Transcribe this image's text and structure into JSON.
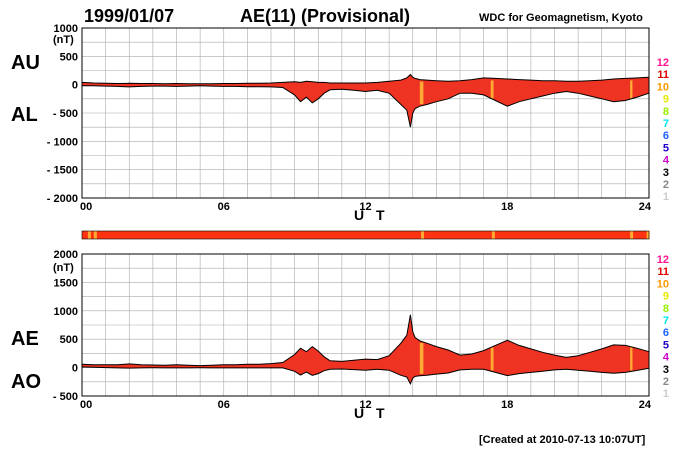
{
  "header": {
    "date": "1999/01/07",
    "title": "AE(11) (Provisional)",
    "org": "WDC for Geomagnetism, Kyoto"
  },
  "footer": {
    "created": "[Created at 2010-07-13 10:07UT]"
  },
  "legend": {
    "items": [
      {
        "label": "12",
        "color": "#ff1493"
      },
      {
        "label": "11",
        "color": "#e00000"
      },
      {
        "label": "10",
        "color": "#ff9900"
      },
      {
        "label": "9",
        "color": "#e8e800"
      },
      {
        "label": "8",
        "color": "#99ee00"
      },
      {
        "label": "7",
        "color": "#00e5ee"
      },
      {
        "label": "6",
        "color": "#1e64ff"
      },
      {
        "label": "5",
        "color": "#2200cc"
      },
      {
        "label": "4",
        "color": "#cc00cc"
      },
      {
        "label": "3",
        "color": "#000000"
      },
      {
        "label": "2",
        "color": "#888888"
      },
      {
        "label": "1",
        "color": "#cccccc"
      }
    ]
  },
  "colors": {
    "fill": "#ee3322",
    "band": "#ff3311",
    "highlight": "#ffaa33",
    "grid": "#aaaaaa"
  },
  "chart_data": [
    {
      "type": "area",
      "title": "",
      "unit": "(nT)",
      "xlabel": "U T",
      "xlim": [
        0,
        24
      ],
      "xticks": [
        {
          "v": 0,
          "label": "00"
        },
        {
          "v": 6,
          "label": "06"
        },
        {
          "v": 12,
          "label": "12"
        },
        {
          "v": 18,
          "label": "18"
        },
        {
          "v": 24,
          "label": "24"
        }
      ],
      "ylim": [
        -2000,
        1000
      ],
      "yticks": [
        {
          "v": 1000,
          "label": "1000"
        },
        {
          "v": 500,
          "label": "500"
        },
        {
          "v": 0,
          "label": "0"
        },
        {
          "v": -500,
          "label": "- 500"
        },
        {
          "v": -1000,
          "label": "- 1000"
        },
        {
          "v": -1500,
          "label": "- 1500"
        },
        {
          "v": -2000,
          "label": "- 2000"
        }
      ],
      "upper_name": "AU",
      "lower_name": "AL",
      "x": [
        0,
        0.5,
        1,
        1.5,
        2,
        2.5,
        3,
        3.5,
        4,
        4.5,
        5,
        5.5,
        6,
        6.5,
        7,
        7.5,
        8,
        8.5,
        9,
        9.25,
        9.5,
        9.75,
        10,
        10.25,
        10.5,
        11,
        11.5,
        12,
        12.5,
        13,
        13.5,
        13.75,
        13.9,
        14,
        14.1,
        14.3,
        14.6,
        15,
        15.5,
        16,
        16.5,
        17,
        17.5,
        18,
        18.5,
        19,
        19.5,
        20,
        20.5,
        21,
        21.5,
        22,
        22.5,
        23,
        23.5,
        24
      ],
      "upper": [
        40,
        30,
        25,
        20,
        25,
        20,
        20,
        15,
        20,
        15,
        15,
        15,
        20,
        20,
        25,
        25,
        30,
        40,
        50,
        40,
        60,
        50,
        40,
        40,
        30,
        30,
        30,
        30,
        40,
        60,
        80,
        120,
        180,
        130,
        110,
        90,
        80,
        70,
        60,
        70,
        90,
        120,
        110,
        100,
        90,
        80,
        70,
        70,
        60,
        60,
        70,
        80,
        100,
        110,
        120,
        130
      ],
      "lower": [
        -20,
        -20,
        -25,
        -30,
        -40,
        -30,
        -25,
        -25,
        -30,
        -25,
        -20,
        -25,
        -30,
        -30,
        -35,
        -35,
        -40,
        -50,
        -180,
        -300,
        -220,
        -320,
        -250,
        -150,
        -90,
        -80,
        -100,
        -120,
        -100,
        -150,
        -350,
        -450,
        -750,
        -500,
        -420,
        -380,
        -350,
        -300,
        -250,
        -150,
        -150,
        -180,
        -280,
        -380,
        -300,
        -250,
        -200,
        -150,
        -120,
        -150,
        -200,
        -250,
        -300,
        -280,
        -220,
        -150
      ],
      "highlights": [
        {
          "x": 14.3,
          "w": 0.15
        },
        {
          "x": 17.3,
          "w": 0.12
        },
        {
          "x": 23.2,
          "w": 0.1
        }
      ]
    },
    {
      "type": "area",
      "title": "",
      "unit": "(nT)",
      "xlabel": "U T",
      "xlim": [
        0,
        24
      ],
      "xticks": [
        {
          "v": 0,
          "label": "00"
        },
        {
          "v": 6,
          "label": "06"
        },
        {
          "v": 12,
          "label": "12"
        },
        {
          "v": 18,
          "label": "18"
        },
        {
          "v": 24,
          "label": "24"
        }
      ],
      "ylim": [
        -500,
        2000
      ],
      "yticks": [
        {
          "v": 2000,
          "label": "2000"
        },
        {
          "v": 1500,
          "label": "1500"
        },
        {
          "v": 1000,
          "label": "1000"
        },
        {
          "v": 500,
          "label": "500"
        },
        {
          "v": 0,
          "label": "0"
        },
        {
          "v": -500,
          "label": "- 500"
        }
      ],
      "upper_name": "AE",
      "lower_name": "AO",
      "x": [
        0,
        0.5,
        1,
        1.5,
        2,
        2.5,
        3,
        3.5,
        4,
        4.5,
        5,
        5.5,
        6,
        6.5,
        7,
        7.5,
        8,
        8.5,
        9,
        9.25,
        9.5,
        9.75,
        10,
        10.25,
        10.5,
        11,
        11.5,
        12,
        12.5,
        13,
        13.5,
        13.75,
        13.9,
        14,
        14.1,
        14.3,
        14.6,
        15,
        15.5,
        16,
        16.5,
        17,
        17.5,
        18,
        18.5,
        19,
        19.5,
        20,
        20.5,
        21,
        21.5,
        22,
        22.5,
        23,
        23.5,
        24
      ],
      "upper": [
        60,
        50,
        50,
        50,
        65,
        50,
        45,
        40,
        50,
        40,
        35,
        40,
        50,
        50,
        60,
        60,
        70,
        90,
        230,
        340,
        280,
        370,
        290,
        190,
        120,
        110,
        130,
        150,
        140,
        210,
        430,
        570,
        930,
        630,
        530,
        470,
        430,
        370,
        310,
        220,
        240,
        300,
        390,
        480,
        390,
        330,
        270,
        220,
        180,
        210,
        270,
        330,
        400,
        390,
        340,
        280
      ],
      "lower": [
        10,
        5,
        0,
        -5,
        -8,
        -5,
        -3,
        -5,
        -5,
        -5,
        -3,
        -5,
        -5,
        -5,
        -5,
        -5,
        -5,
        -5,
        -65,
        -130,
        -80,
        -135,
        -105,
        -55,
        -30,
        -25,
        -35,
        -45,
        -30,
        -45,
        -135,
        -165,
        -285,
        -185,
        -155,
        -145,
        -135,
        -115,
        -95,
        -40,
        -30,
        -30,
        -85,
        -140,
        -105,
        -85,
        -65,
        -40,
        -30,
        -45,
        -65,
        -85,
        -100,
        -85,
        -50,
        -10
      ],
      "highlights": [
        {
          "x": 14.3,
          "w": 0.15
        },
        {
          "x": 17.3,
          "w": 0.12
        },
        {
          "x": 23.2,
          "w": 0.1
        }
      ]
    }
  ],
  "band": {
    "highlights": [
      0.25,
      0.5,
      14.35,
      17.35,
      23.2,
      23.9
    ]
  }
}
